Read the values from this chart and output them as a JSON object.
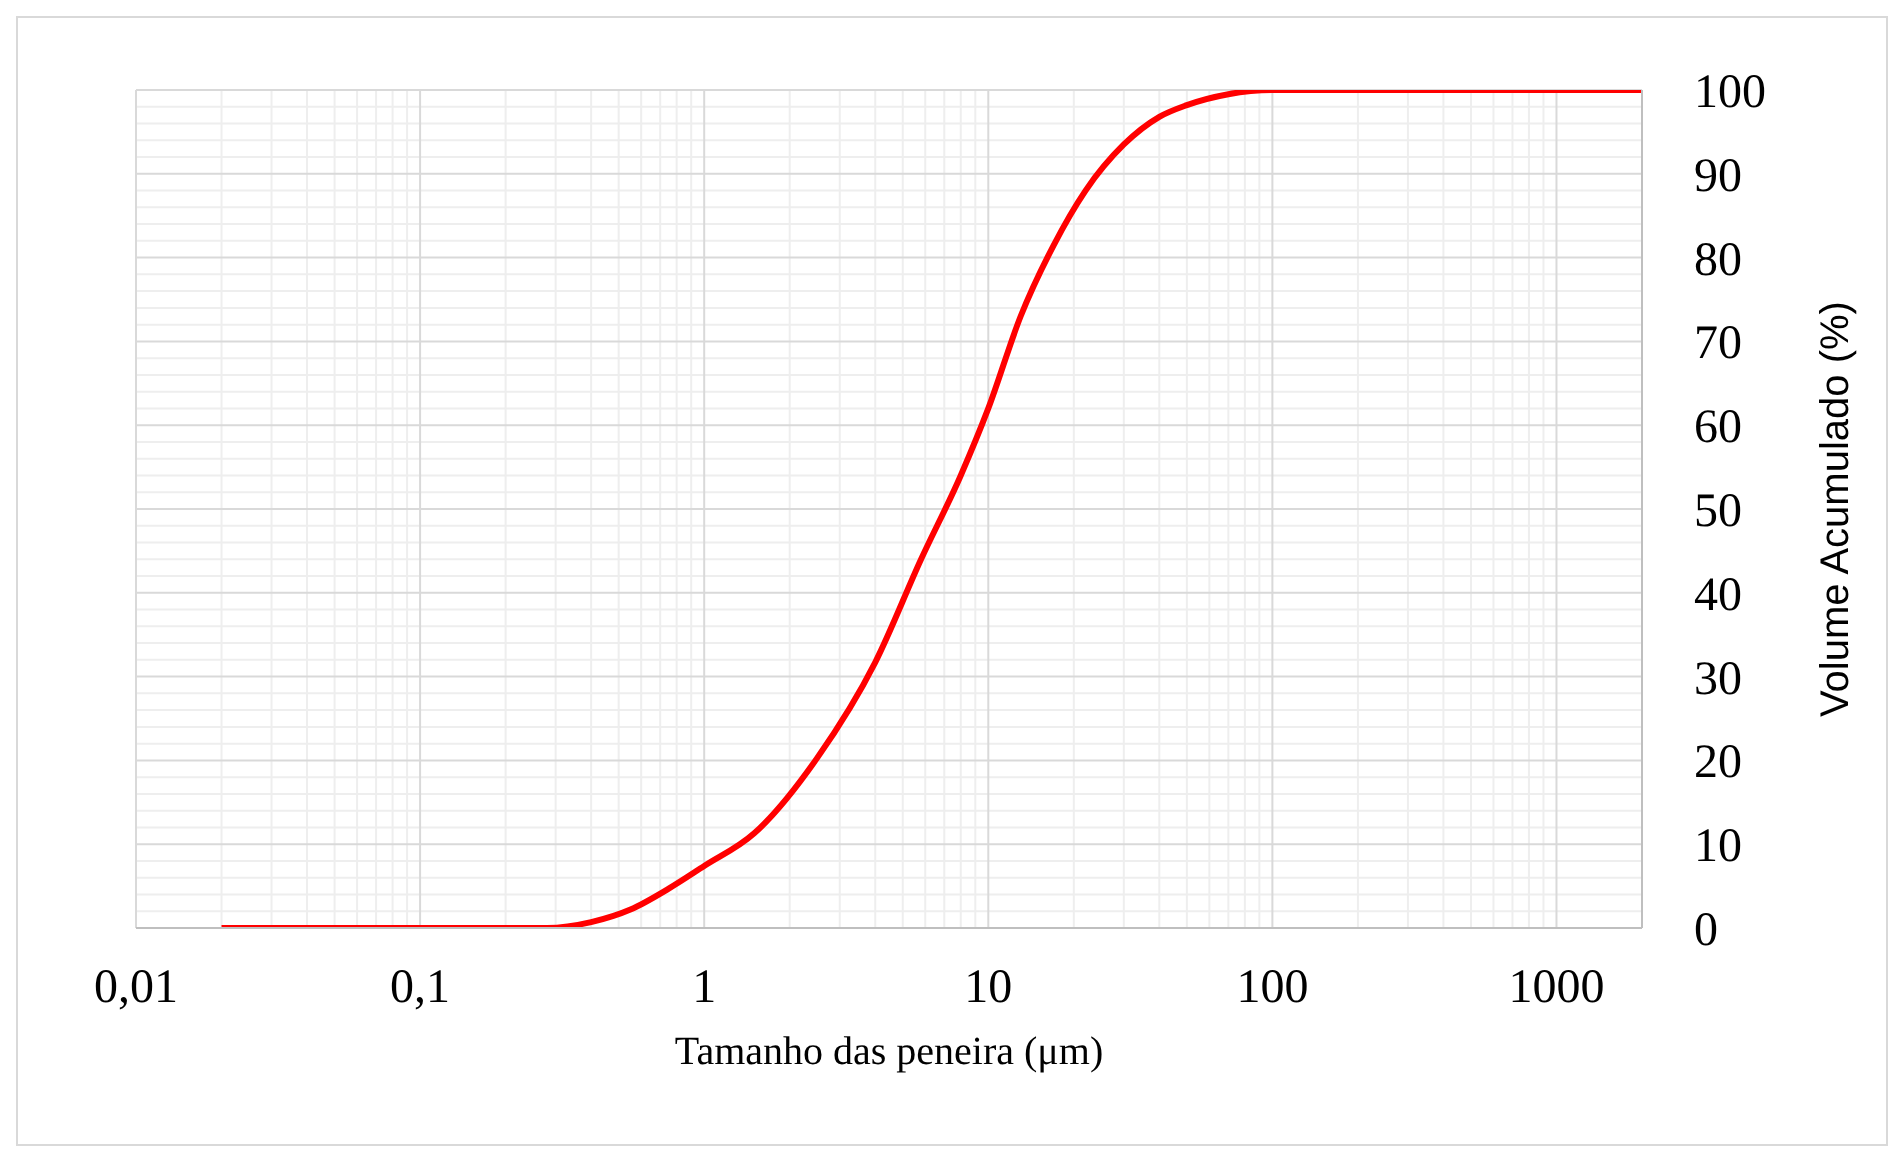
{
  "chart_data": {
    "type": "line",
    "xlabel": "Tamanho das peneira (μm)",
    "ylabel": "Volume Acumulado (%)",
    "log": "x",
    "x": [
      0.02,
      0.1,
      0.28,
      0.4,
      0.55,
      0.75,
      1,
      1.5,
      2.5,
      4,
      5.8,
      8,
      10,
      13,
      17,
      22,
      30,
      40,
      50,
      70,
      100,
      2000
    ],
    "series": [
      {
        "color": "#ff0000",
        "values": [
          0,
          0,
          0,
          0.7,
          2.2,
          4.7,
          7.4,
          11.3,
          20.3,
          31.7,
          44,
          54,
          62,
          73,
          81.5,
          88,
          93.5,
          96.8,
          98.2,
          99.5,
          100,
          100
        ]
      }
    ],
    "xlim": [
      0.01,
      2000
    ],
    "xticks": [
      {
        "value": 0.01,
        "label": "0,01"
      },
      {
        "value": 0.1,
        "label": "0,1"
      },
      1,
      10,
      100,
      1000
    ],
    "ylim": [
      0,
      100
    ],
    "yticks": [
      0,
      10,
      20,
      30,
      40,
      50,
      60,
      70,
      80,
      90,
      100
    ],
    "grid": true,
    "marker": "none",
    "line_style": "solid"
  }
}
